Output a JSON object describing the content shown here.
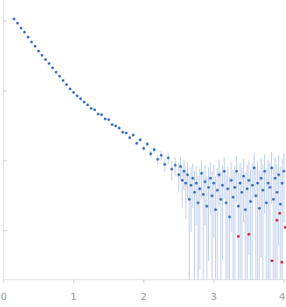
{
  "chart_data": {
    "type": "scatter",
    "log": "y",
    "grid": false,
    "tick_labels": "x",
    "xlim": [
      0,
      4.03
    ],
    "ylim": [
      0.0002,
      2
    ],
    "xticks": [
      0,
      1,
      2,
      3,
      4
    ],
    "yticks": [
      0.001,
      0.01,
      0.1,
      1
    ],
    "series": [
      {
        "color": "#3b6fc2",
        "marker": "circle",
        "x": [
          0.15,
          0.2,
          0.25,
          0.3,
          0.35,
          0.4,
          0.45,
          0.5,
          0.55,
          0.6,
          0.65,
          0.7,
          0.75,
          0.8,
          0.85,
          0.9,
          0.95,
          1.0,
          1.05,
          1.1,
          1.15,
          1.2,
          1.25,
          1.3,
          1.35,
          1.4,
          1.45,
          1.5,
          1.55,
          1.6,
          1.65,
          1.7,
          1.75,
          1.8,
          1.85,
          1.9,
          1.95,
          2.0,
          2.05,
          2.1,
          2.15,
          2.2,
          2.25,
          2.3,
          2.35,
          2.4,
          2.45,
          2.5,
          2.525,
          2.55,
          2.575,
          2.6,
          2.625,
          2.65,
          2.675,
          2.7,
          2.725,
          2.75,
          2.775,
          2.8,
          2.825,
          2.85,
          2.875,
          2.9,
          2.925,
          2.95,
          2.975,
          3.0,
          3.025,
          3.05,
          3.075,
          3.1,
          3.125,
          3.15,
          3.175,
          3.2,
          3.225,
          3.25,
          3.275,
          3.3,
          3.325,
          3.35,
          3.375,
          3.4,
          3.425,
          3.45,
          3.475,
          3.5,
          3.525,
          3.55,
          3.575,
          3.6,
          3.625,
          3.65,
          3.675,
          3.7,
          3.725,
          3.75,
          3.775,
          3.8,
          3.825,
          3.85,
          3.875,
          3.9,
          3.925,
          3.95,
          3.975,
          4.0
        ],
        "values": [
          1.07,
          0.933,
          0.794,
          0.692,
          0.589,
          0.501,
          0.437,
          0.372,
          0.324,
          0.282,
          0.246,
          0.214,
          0.186,
          0.162,
          0.141,
          0.123,
          0.107,
          0.0955,
          0.0851,
          0.0776,
          0.0692,
          0.0631,
          0.0562,
          0.0537,
          0.0468,
          0.0457,
          0.0398,
          0.0389,
          0.0331,
          0.0316,
          0.0295,
          0.0257,
          0.0251,
          0.0214,
          0.0234,
          0.0178,
          0.02,
          0.0151,
          0.0174,
          0.0126,
          0.0145,
          0.0105,
          0.012,
          0.00891,
          0.011,
          0.00759,
          0.00871,
          0.00631,
          0.00832,
          0.00525,
          0.00708,
          0.00479,
          0.00631,
          0.00282,
          0.00447,
          0.00562,
          0.00355,
          0.00479,
          0.00251,
          0.00398,
          0.00661,
          0.00331,
          0.00501,
          0.00224,
          0.00417,
          0.00562,
          0.00316,
          0.00479,
          0.002,
          0.0038,
          0.00631,
          0.00282,
          0.00447,
          0.00708,
          0.00251,
          0.00398,
          0.00158,
          0.00525,
          0.00302,
          0.00417,
          0.00708,
          0.00224,
          0.00479,
          0.00355,
          0.00603,
          0.002,
          0.00398,
          0.00525,
          0.00263,
          0.00447,
          0.00794,
          0.00316,
          0.00479,
          0.00209,
          0.00562,
          0.0038,
          0.00708,
          0.00251,
          0.00479,
          0.00417,
          0.00794,
          0.00282,
          0.00562,
          0.00355,
          0.00631,
          0.0024,
          0.00479,
          0.00708
        ],
        "errors": [
          0.02,
          0.012,
          0.008,
          0.006,
          0.005,
          0.004,
          0.0035,
          0.003,
          0.0026,
          0.0023,
          0.002,
          0.0018,
          0.0017,
          0.0016,
          0.0015,
          0.0014,
          0.0013,
          0.0012,
          0.0012,
          0.0011,
          0.0011,
          0.001,
          0.001,
          0.001,
          0.001,
          0.001,
          0.0009,
          0.0009,
          0.0009,
          0.0009,
          0.0009,
          0.0009,
          0.0009,
          0.0009,
          0.001,
          0.0011,
          0.0011,
          0.0012,
          0.0013,
          0.0014,
          0.0015,
          0.0017,
          0.0019,
          0.002,
          0.0022,
          0.0024,
          0.0026,
          0.0028,
          0.003,
          0.0031,
          0.0032,
          0.0033,
          0.0034,
          0.0034,
          0.0035,
          0.0035,
          0.0036,
          0.0036,
          0.0036,
          0.0037,
          0.0037,
          0.0037,
          0.0038,
          0.0038,
          0.0038,
          0.0039,
          0.0039,
          0.004,
          0.004,
          0.004,
          0.0041,
          0.0041,
          0.0041,
          0.0042,
          0.0042,
          0.0043,
          0.0043,
          0.0043,
          0.0044,
          0.0044,
          0.0045,
          0.0045,
          0.0046,
          0.0046,
          0.0047,
          0.0047,
          0.0048,
          0.0048,
          0.0049,
          0.0049,
          0.005,
          0.005,
          0.0051,
          0.0051,
          0.0052,
          0.0052,
          0.0053,
          0.0053,
          0.0054,
          0.0054,
          0.0055,
          0.0055,
          0.0056,
          0.0056,
          0.0057,
          0.0057,
          0.0058,
          0.0058
        ]
      },
      {
        "color": "#e0202a",
        "marker": "circle",
        "x": [
          3.35,
          3.5,
          3.83,
          3.9,
          3.94,
          3.97,
          4.02
        ],
        "values": [
          0.000832,
          0.000891,
          0.000372,
          0.00141,
          0.00178,
          0.000355,
          0.00112
        ]
      }
    ]
  }
}
